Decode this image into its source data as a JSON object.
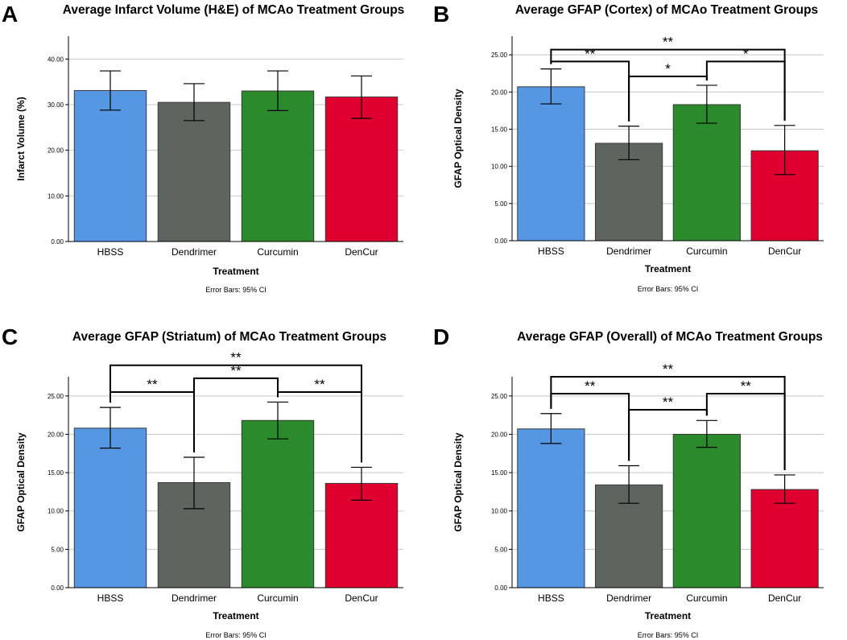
{
  "chart_data": [
    {
      "panel": "A",
      "type": "bar",
      "title": "Average Infarct Volume (H&E) of MCAo Treatment Groups",
      "xlabel": "Treatment",
      "ylabel": "Infarct Volume (%)",
      "note": "Error Bars: 95% CI",
      "ylim": [
        0,
        45
      ],
      "yticks": [
        0,
        10,
        20,
        30,
        40
      ],
      "ytick_labels": [
        "0.00",
        "10.00",
        "20.00",
        "30.00",
        "40.00"
      ],
      "categories": [
        "HBSS",
        "Dendrimer",
        "Curcumin",
        "DenCur"
      ],
      "values": [
        33.1,
        30.5,
        33.0,
        31.7
      ],
      "ci_low": [
        28.8,
        26.5,
        28.7,
        27.0
      ],
      "ci_high": [
        37.4,
        34.6,
        37.4,
        36.3
      ],
      "colors": [
        "#5597E3",
        "#5E655E",
        "#2B8A2B",
        "#E0002F"
      ],
      "significance": []
    },
    {
      "panel": "B",
      "type": "bar",
      "title": "Average GFAP (Cortex) of MCAo Treatment Groups",
      "xlabel": "Treatment",
      "ylabel": "GFAP Optical Density",
      "note": "Error Bars: 95% CI",
      "ylim": [
        0,
        27.5
      ],
      "yticks": [
        0,
        5,
        10,
        15,
        20,
        25
      ],
      "ytick_labels": [
        "0.00",
        "5.00",
        "10.00",
        "15.00",
        "20.00",
        "25.00"
      ],
      "categories": [
        "HBSS",
        "Dendrimer",
        "Curcumin",
        "DenCur"
      ],
      "values": [
        20.7,
        13.1,
        18.3,
        12.1
      ],
      "ci_low": [
        18.4,
        10.9,
        15.8,
        8.9
      ],
      "ci_high": [
        23.1,
        15.4,
        20.9,
        15.5
      ],
      "colors": [
        "#5597E3",
        "#5E655E",
        "#2B8A2B",
        "#E0002F"
      ],
      "significance": [
        {
          "from": 0,
          "to": 3,
          "label": "**",
          "level": 25.7
        },
        {
          "from": 0,
          "to": 1,
          "label": "**",
          "level": 24.1
        },
        {
          "from": 2,
          "to": 3,
          "label": "*",
          "level": 24.1
        },
        {
          "from": 1,
          "to": 2,
          "label": "*",
          "level": 22.1
        }
      ]
    },
    {
      "panel": "C",
      "type": "bar",
      "title": "Average GFAP (Striatum) of MCAo Treatment Groups",
      "xlabel": "Treatment",
      "ylabel": "GFAP Optical Density",
      "note": "Error Bars: 95% CI",
      "ylim": [
        0,
        27.5
      ],
      "yticks": [
        0,
        5,
        10,
        15,
        20,
        25
      ],
      "ytick_labels": [
        "0.00",
        "5.00",
        "10.00",
        "15.00",
        "20.00",
        "25.00"
      ],
      "categories": [
        "HBSS",
        "Dendrimer",
        "Curcumin",
        "DenCur"
      ],
      "values": [
        20.8,
        13.7,
        21.8,
        13.6
      ],
      "ci_low": [
        18.2,
        10.3,
        19.4,
        11.4
      ],
      "ci_high": [
        23.5,
        17.0,
        24.2,
        15.7
      ],
      "colors": [
        "#5597E3",
        "#5E655E",
        "#2B8A2B",
        "#E0002F"
      ],
      "significance": [
        {
          "from": 0,
          "to": 3,
          "label": "**",
          "level": 29.0
        },
        {
          "from": 1,
          "to": 2,
          "label": "**",
          "level": 27.3
        },
        {
          "from": 0,
          "to": 1,
          "label": "**",
          "level": 25.5
        },
        {
          "from": 2,
          "to": 3,
          "label": "**",
          "level": 25.5
        }
      ]
    },
    {
      "panel": "D",
      "type": "bar",
      "title": "Average GFAP (Overall) of MCAo Treatment Groups",
      "xlabel": "Treatment",
      "ylabel": "GFAP Optical Density",
      "note": "Error Bars: 95% CI",
      "ylim": [
        0,
        27.5
      ],
      "yticks": [
        0,
        5,
        10,
        15,
        20,
        25
      ],
      "ytick_labels": [
        "0.00",
        "5.00",
        "10.00",
        "15.00",
        "20.00",
        "25.00"
      ],
      "categories": [
        "HBSS",
        "Dendrimer",
        "Curcumin",
        "DenCur"
      ],
      "values": [
        20.7,
        13.4,
        20.0,
        12.8
      ],
      "ci_low": [
        18.8,
        11.0,
        18.3,
        11.0
      ],
      "ci_high": [
        22.7,
        15.9,
        21.8,
        14.7
      ],
      "colors": [
        "#5597E3",
        "#5E655E",
        "#2B8A2B",
        "#E0002F"
      ],
      "significance": [
        {
          "from": 0,
          "to": 3,
          "label": "**",
          "level": 27.5
        },
        {
          "from": 0,
          "to": 1,
          "label": "**",
          "level": 25.3
        },
        {
          "from": 2,
          "to": 3,
          "label": "**",
          "level": 25.3
        },
        {
          "from": 1,
          "to": 2,
          "label": "**",
          "level": 23.2
        }
      ]
    }
  ]
}
